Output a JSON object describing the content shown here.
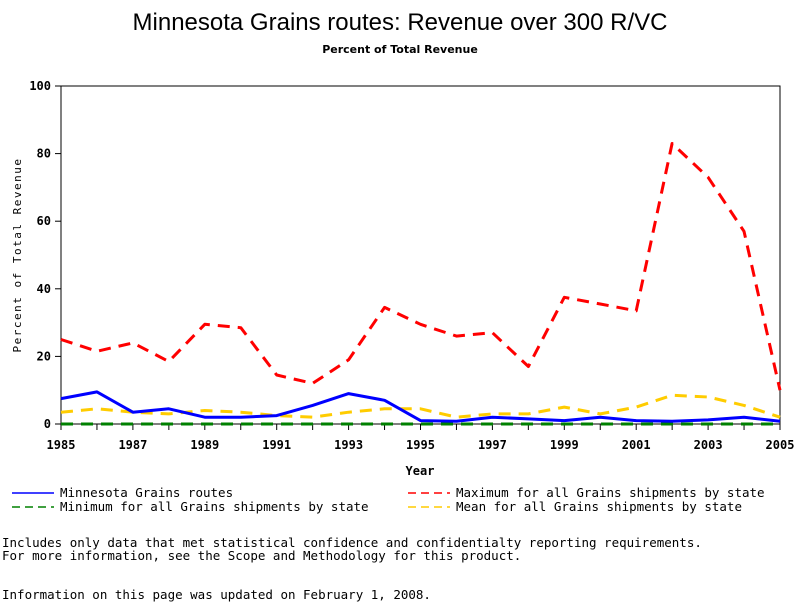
{
  "chart_data": {
    "type": "line",
    "title": "Minnesota Grains routes: Revenue over 300 R/VC",
    "subtitle": "Percent of Total Revenue",
    "xlabel": "Year",
    "ylabel": "Percent of Total Revenue",
    "xlim": [
      1985,
      2005
    ],
    "ylim": [
      0,
      100
    ],
    "xticks": [
      "1985",
      "1987",
      "1989",
      "1991",
      "1993",
      "1995",
      "1997",
      "1999",
      "2001",
      "2003",
      "2005"
    ],
    "yticks": [
      "0",
      "20",
      "40",
      "60",
      "80",
      "100"
    ],
    "grid": false,
    "legend_position": "bottom",
    "x": [
      1985,
      1986,
      1987,
      1988,
      1989,
      1990,
      1991,
      1992,
      1993,
      1994,
      1995,
      1996,
      1997,
      1998,
      1999,
      2000,
      2001,
      2002,
      2003,
      2004,
      2005
    ],
    "series": [
      {
        "name": "Minnesota Grains routes",
        "color": "#0000ff",
        "style": "solid",
        "values": [
          7.5,
          9.5,
          3.5,
          4.5,
          2,
          2,
          2.5,
          5.5,
          9,
          7,
          1,
          0.8,
          2,
          1.5,
          1,
          2,
          1,
          0.8,
          1.2,
          2,
          0.8
        ]
      },
      {
        "name": "Maximum for all Grains shipments by state",
        "color": "#ff0000",
        "style": "dashed",
        "values": [
          25,
          21.5,
          24,
          18.5,
          29.5,
          28.5,
          14.5,
          12,
          19,
          34.5,
          29.5,
          26,
          27,
          17,
          37.5,
          35.5,
          33.5,
          83,
          73,
          57,
          10
        ]
      },
      {
        "name": "Minimum for all Grains shipments by state",
        "color": "#008000",
        "style": "dashed",
        "values": [
          0,
          0,
          0,
          0,
          0,
          0,
          0,
          0,
          0,
          0,
          0,
          0,
          0,
          0,
          0,
          0,
          0,
          0,
          0,
          0,
          0
        ]
      },
      {
        "name": "Mean for all Grains shipments by state",
        "color": "#ffcc00",
        "style": "dashed",
        "values": [
          3.5,
          4.5,
          3.5,
          3,
          4,
          3.5,
          2.5,
          2,
          3.5,
          4.5,
          4.5,
          2,
          3,
          3,
          5,
          3,
          5,
          8.5,
          8,
          5.5,
          2
        ]
      }
    ]
  },
  "notes": {
    "line1": "Includes only data that met statistical confidence and confidentialty reporting requirements.",
    "line2": "For more information, see the Scope and Methodology for this product.",
    "updated": "Information on this page was updated on February 1, 2008."
  }
}
